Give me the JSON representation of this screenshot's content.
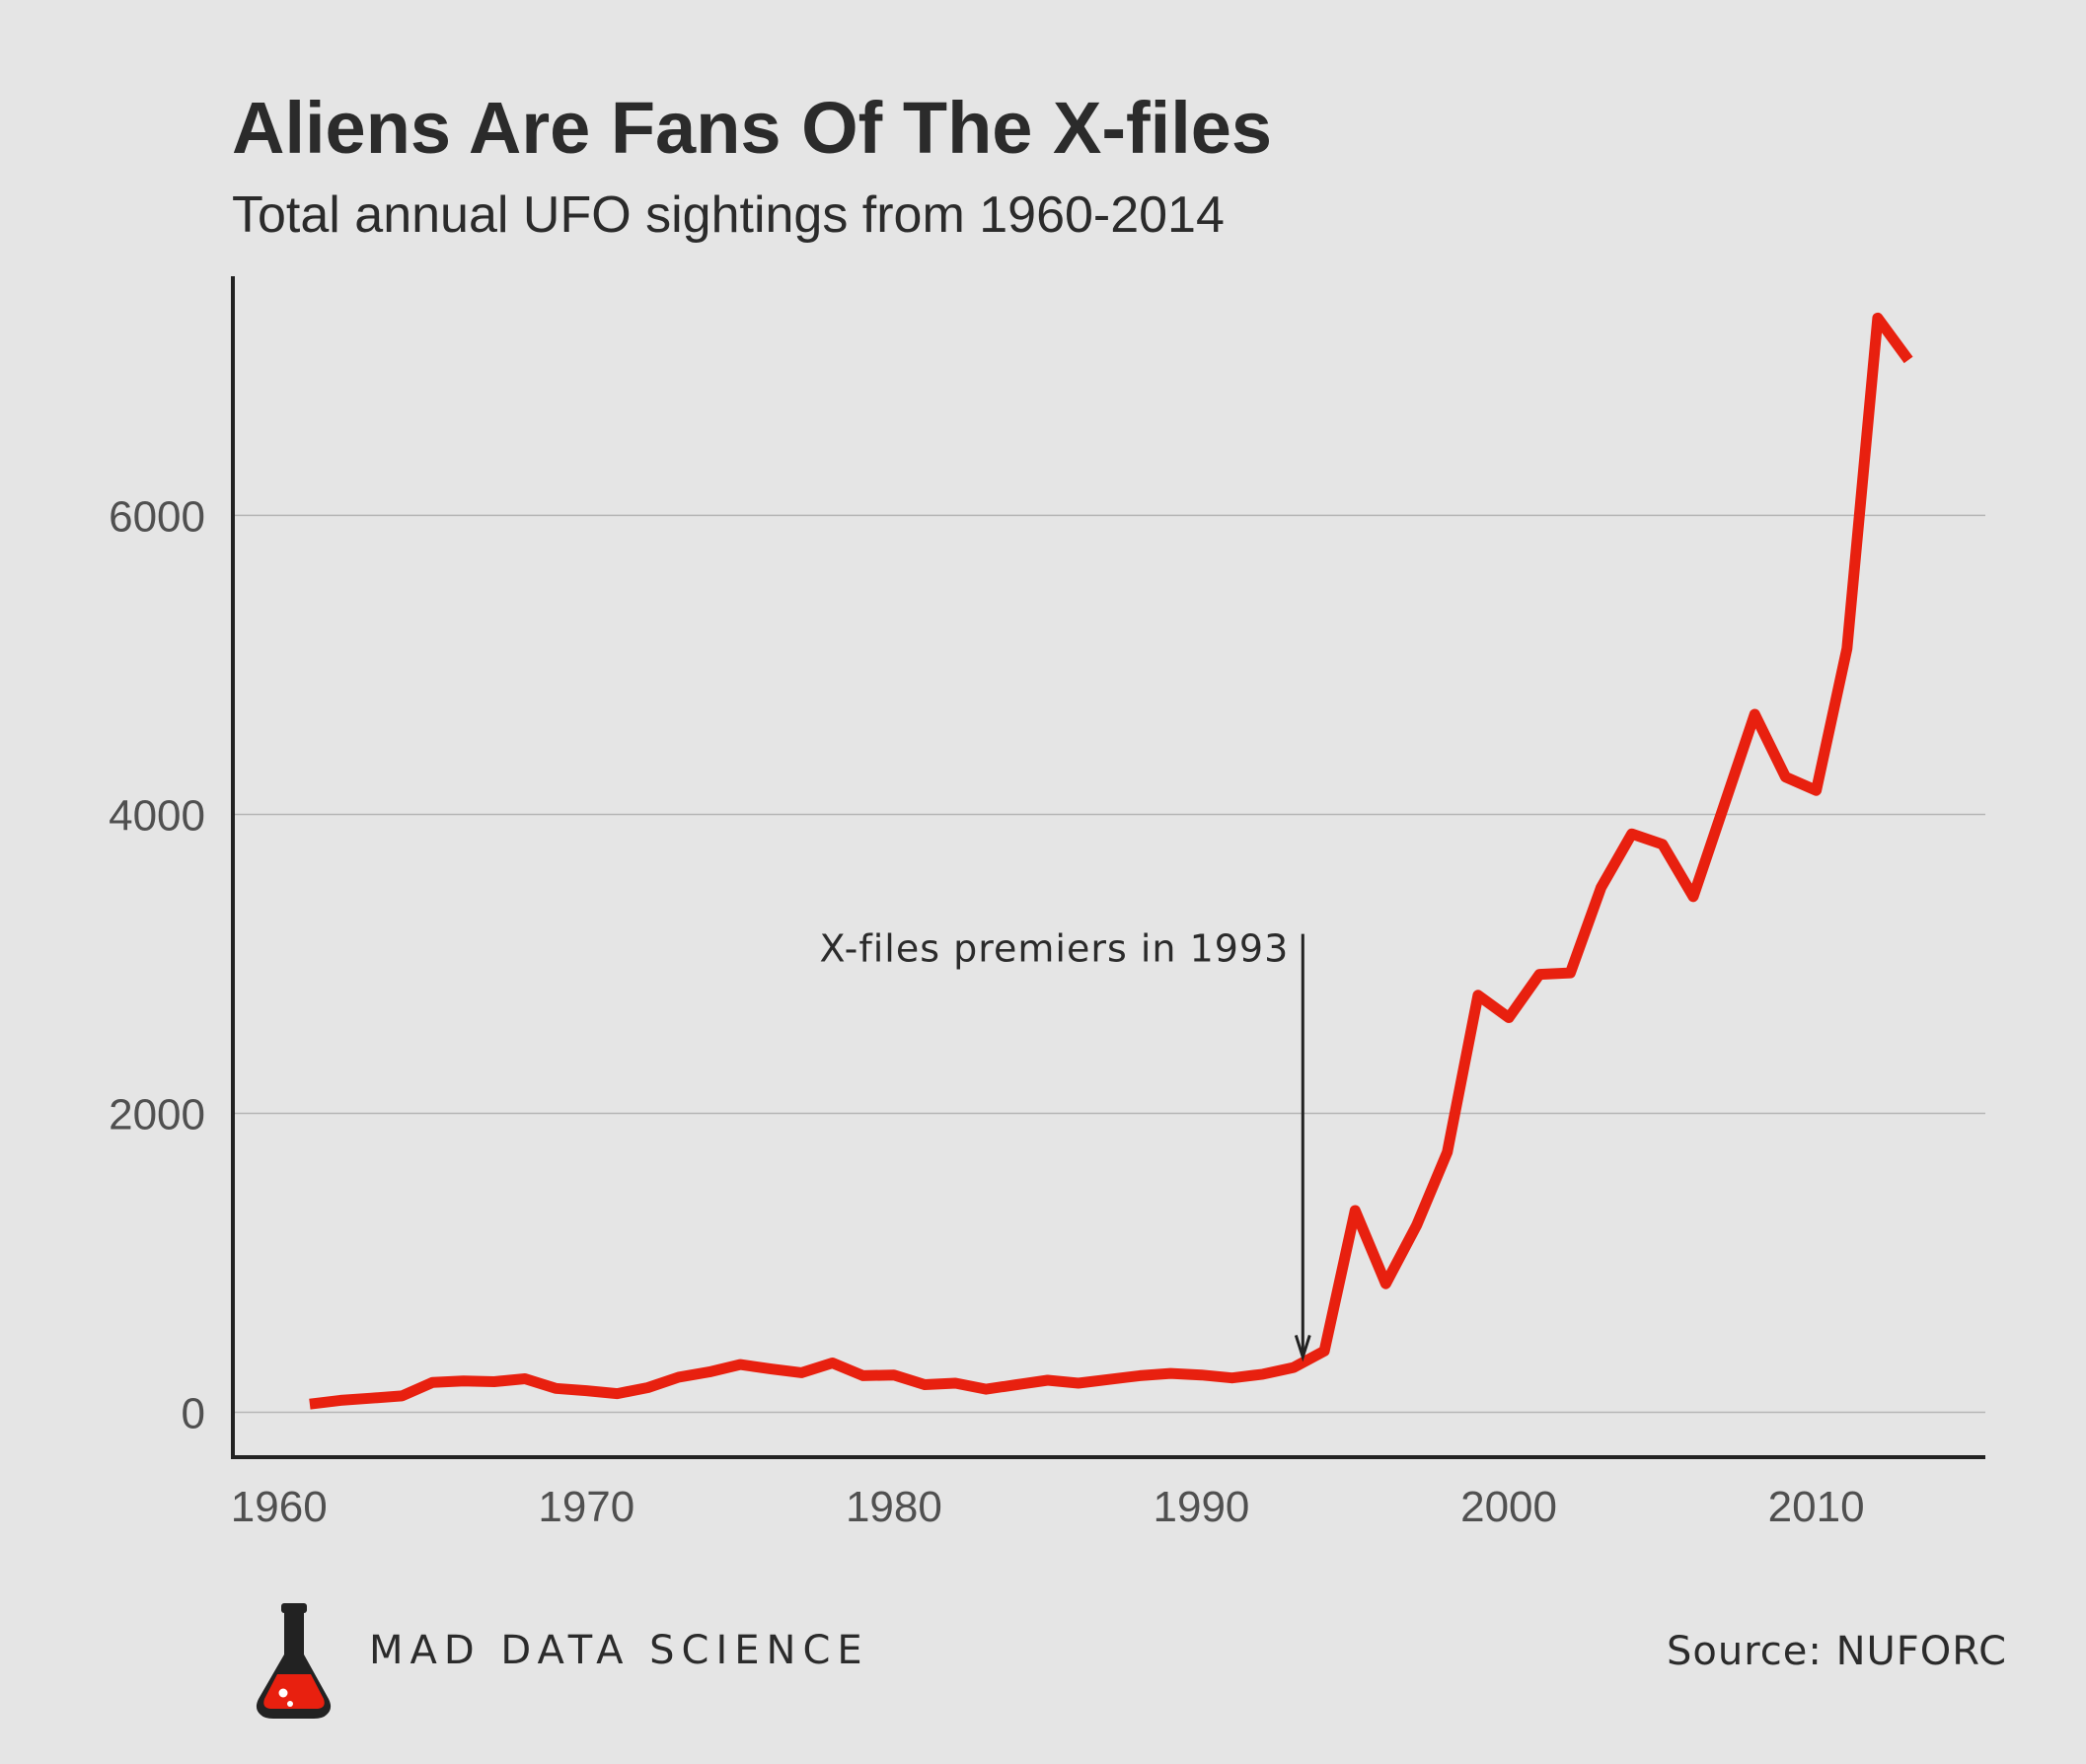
{
  "chart_data": {
    "type": "line",
    "title": "Aliens Are Fans Of The X-files",
    "subtitle": "Total annual UFO sightings from 1960-2014",
    "xlabel": "",
    "ylabel": "",
    "xlim": [
      1958.5,
      2015.5
    ],
    "ylim": [
      -300,
      7600
    ],
    "x_ticks": [
      1960,
      1970,
      1980,
      1990,
      2000,
      2010
    ],
    "y_ticks": [
      0,
      2000,
      4000,
      6000
    ],
    "grid": "horizontal",
    "legend": "none",
    "line_color": "#e8200f",
    "series": [
      {
        "x": [
          1961,
          1962,
          1963,
          1964,
          1965,
          1966,
          1967,
          1968,
          1969,
          1970,
          1971,
          1972,
          1973,
          1974,
          1975,
          1976,
          1977,
          1978,
          1979,
          1980,
          1981,
          1982,
          1983,
          1984,
          1985,
          1986,
          1987,
          1988,
          1989,
          1990,
          1991,
          1992,
          1993,
          1994,
          1995,
          1996,
          1997,
          1998,
          1999,
          2000,
          2001,
          2002,
          2003,
          2004,
          2005,
          2006,
          2007,
          2008,
          2009,
          2010,
          2011,
          2012,
          2013
        ],
        "y": [
          55,
          80,
          95,
          110,
          200,
          210,
          205,
          225,
          160,
          145,
          125,
          165,
          235,
          270,
          320,
          290,
          265,
          330,
          245,
          250,
          185,
          195,
          155,
          185,
          215,
          195,
          220,
          245,
          260,
          250,
          230,
          255,
          300,
          410,
          1350,
          860,
          1250,
          1740,
          2790,
          2640,
          2930,
          2940,
          3510,
          3870,
          3800,
          3450,
          4060,
          4670,
          4250,
          4160,
          5110,
          7320,
          7040
        ]
      }
    ],
    "annotation": {
      "text": "X-files premiers in 1993",
      "x": 1993.3,
      "y_top": 3200,
      "y_bottom": 370
    }
  },
  "footer": {
    "brand": "MAD DATA SCIENCE",
    "source": "Source: NUFORC"
  },
  "colors": {
    "background": "#e5e5e5",
    "line": "#e8200f",
    "text": "#2b2b2b",
    "grid": "#b5b5b5"
  }
}
